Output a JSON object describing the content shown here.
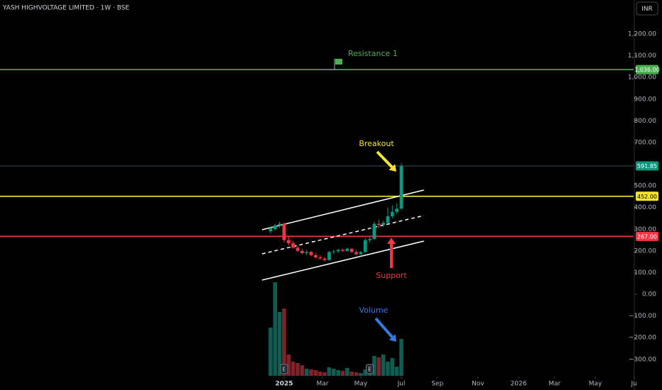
{
  "toolbar": {
    "currency": "INR"
  },
  "chart_data": {
    "type": "candlestick",
    "title": "YASH HIGHVOLTAGE LIMITED · 1W · BSE",
    "xlim": [
      -63,
      77.5
    ],
    "xticks": [
      {
        "value": 0,
        "label": "2025"
      },
      {
        "value": 8.5,
        "label": "Mar"
      },
      {
        "value": 17,
        "label": "May"
      },
      {
        "value": 26,
        "label": "Jul"
      },
      {
        "value": 34,
        "label": "Sep"
      },
      {
        "value": 43,
        "label": "Nov"
      },
      {
        "value": 52,
        "label": "2026"
      },
      {
        "value": 60,
        "label": "Mar"
      },
      {
        "value": 69,
        "label": "May"
      },
      {
        "value": 77.6,
        "label": "Ju"
      }
    ],
    "ylim": [
      -376,
      1357
    ],
    "yticks": [
      {
        "value": 1200,
        "label": "1,200.00"
      },
      {
        "value": 1100,
        "label": "1,100.00"
      },
      {
        "value": 1000,
        "label": "1,000.00"
      },
      {
        "value": 900,
        "label": "900.00"
      },
      {
        "value": 800,
        "label": "800.00"
      },
      {
        "value": 700,
        "label": "700.00"
      },
      {
        "value": 500,
        "label": "500.00"
      },
      {
        "value": 400,
        "label": "400.00"
      },
      {
        "value": 300,
        "label": "300.00"
      },
      {
        "value": 200,
        "label": "200.00"
      },
      {
        "value": 100,
        "label": "100.00"
      },
      {
        "value": 0,
        "label": "0.00"
      },
      {
        "value": -100,
        "label": "−100.00"
      },
      {
        "value": -200,
        "label": "−200.00"
      },
      {
        "value": -300,
        "label": "−300.00"
      }
    ],
    "up_color": "#089981",
    "down_color": "#f23645",
    "volume_up_color": "#0e5c52",
    "volume_down_color": "#7d2329",
    "x": [
      -3,
      -2,
      -1,
      0,
      1,
      2,
      3,
      4,
      5,
      6,
      7,
      8,
      9,
      10,
      11,
      12,
      13,
      14,
      15,
      16,
      17,
      18,
      19,
      20,
      21,
      22,
      23,
      24,
      25,
      26
    ],
    "open": [
      290,
      300,
      318,
      325,
      250,
      235,
      215,
      200,
      190,
      195,
      180,
      170,
      165,
      158,
      195,
      198,
      205,
      200,
      210,
      195,
      185,
      195,
      250,
      255,
      325,
      320,
      330,
      360,
      380,
      395
    ],
    "high": [
      315,
      325,
      335,
      330,
      265,
      245,
      225,
      210,
      205,
      200,
      190,
      180,
      172,
      200,
      205,
      210,
      210,
      215,
      212,
      205,
      200,
      260,
      265,
      335,
      345,
      340,
      400,
      410,
      420,
      605
    ],
    "low": [
      280,
      295,
      305,
      240,
      225,
      210,
      195,
      185,
      180,
      175,
      165,
      160,
      150,
      155,
      185,
      190,
      195,
      195,
      190,
      180,
      175,
      190,
      240,
      250,
      305,
      310,
      325,
      350,
      370,
      390
    ],
    "close": [
      305,
      318,
      325,
      250,
      235,
      215,
      200,
      190,
      195,
      180,
      170,
      165,
      158,
      195,
      198,
      205,
      200,
      210,
      195,
      185,
      195,
      250,
      255,
      325,
      320,
      330,
      360,
      380,
      395,
      591.85
    ],
    "volume_lim": [
      0,
      1600
    ],
    "volume": [
      680,
      1320,
      900,
      950,
      300,
      200,
      180,
      150,
      100,
      90,
      80,
      60,
      50,
      120,
      100,
      80,
      70,
      110,
      60,
      50,
      40,
      90,
      120,
      280,
      260,
      300,
      200,
      250,
      130,
      520
    ],
    "levels": [
      {
        "value": 1036,
        "label": "1,036.00",
        "color": "#4caf50"
      },
      {
        "value": 591.85,
        "label": "591.85",
        "color": "#089981"
      },
      {
        "value": 452,
        "label": "452.00",
        "color": "#f5e52b"
      },
      {
        "value": 267,
        "label": "267.00",
        "color": "#f23645"
      }
    ],
    "trendlines": [
      {
        "x": [
          -4.9,
          31
        ],
        "y": [
          297.6,
          480.7
        ],
        "dashed": false
      },
      {
        "x": [
          -4.9,
          31
        ],
        "y": [
          186.4,
          363
        ],
        "dashed": true
      },
      {
        "x": [
          -4.9,
          31
        ],
        "y": [
          65.4,
          245.3
        ],
        "dashed": false
      }
    ],
    "annotations": [
      {
        "text": "Resistance 1",
        "color": "#4caf50"
      },
      {
        "text": "Breakout",
        "color": "#f5e52b"
      },
      {
        "text": "Support",
        "color": "#f23645"
      },
      {
        "text": "Volume",
        "color": "#2f7de1"
      }
    ],
    "earnings_markers": [
      {
        "x": 0,
        "label": "E"
      },
      {
        "x": 19,
        "label": "E"
      }
    ]
  }
}
